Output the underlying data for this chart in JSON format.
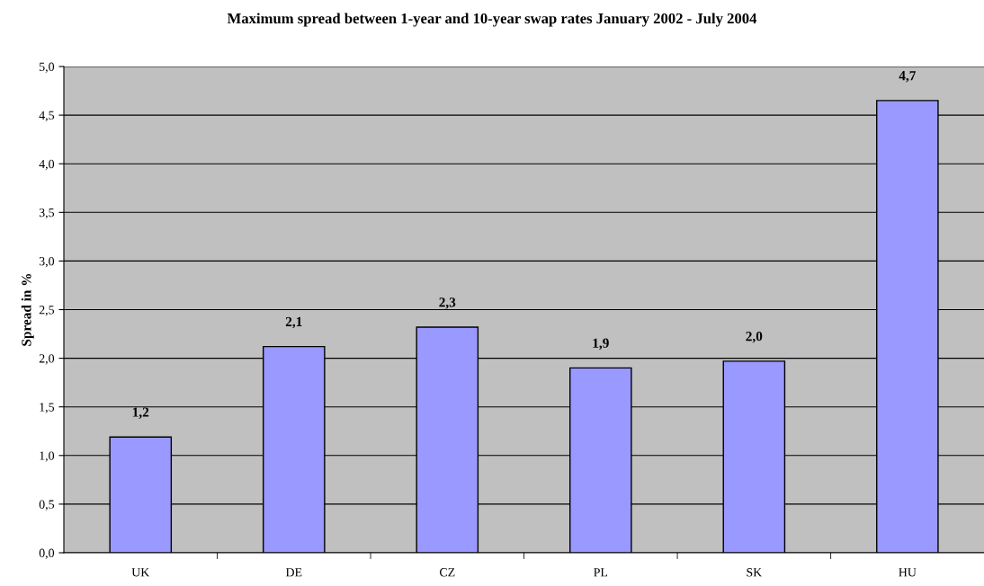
{
  "chart_data": {
    "type": "bar",
    "title": "Maximum spread between 1-year and 10-year swap rates January 2002 - July 2004",
    "ylabel": "Spread in %",
    "categories": [
      "UK",
      "DE",
      "CZ",
      "PL",
      "SK",
      "HU"
    ],
    "values": [
      1.19,
      2.12,
      2.32,
      1.9,
      1.97,
      4.65
    ],
    "value_labels": [
      "1,2",
      "2,1",
      "2,3",
      "1,9",
      "2,0",
      "4,7"
    ],
    "color": "#9999ff",
    "ylim": [
      0,
      5
    ],
    "yticks": [
      {
        "value": 0,
        "label": "0,0"
      },
      {
        "value": 0.5,
        "label": "0,5"
      },
      {
        "value": 1,
        "label": "1,0"
      },
      {
        "value": 1.5,
        "label": "1,5"
      },
      {
        "value": 2,
        "label": "2,0"
      },
      {
        "value": 2.5,
        "label": "2,5"
      },
      {
        "value": 3,
        "label": "3,0"
      },
      {
        "value": 3.5,
        "label": "3,5"
      },
      {
        "value": 4,
        "label": "4,0"
      },
      {
        "value": 4.5,
        "label": "4,5"
      },
      {
        "value": 5,
        "label": "5,0"
      }
    ],
    "grid": "y"
  }
}
